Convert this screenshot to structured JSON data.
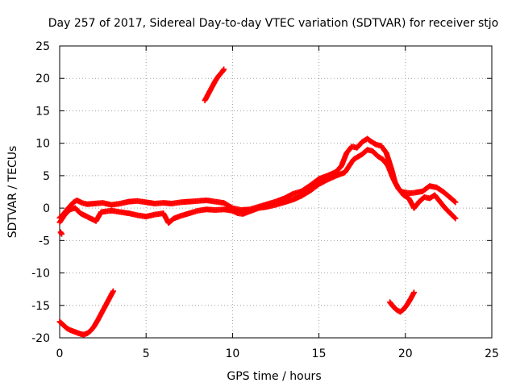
{
  "chart_data": {
    "type": "scatter",
    "title": "Day 257 of 2017, Sidereal Day-to-day VTEC variation (SDTVAR) for receiver stjo",
    "xlabel": "GPS time / hours",
    "ylabel": "SDTVAR / TECUs",
    "xlim": [
      0,
      25
    ],
    "ylim": [
      -20,
      25
    ],
    "xticks": [
      0,
      5,
      10,
      15,
      20,
      25
    ],
    "yticks": [
      -20,
      -15,
      -10,
      -5,
      0,
      5,
      10,
      15,
      20,
      25
    ],
    "grid": true,
    "marker_color": "#ff0000",
    "series": [
      {
        "name": "main-upper",
        "x": [
          0.0,
          0.2,
          0.4,
          0.6,
          0.8,
          1.0,
          1.3,
          1.6,
          2.0,
          2.5,
          3.0,
          3.5,
          4.0,
          4.5,
          5.0,
          5.5,
          6.0,
          6.5,
          7.0,
          7.5,
          8.0,
          8.5,
          9.0,
          9.5,
          10.0,
          10.5,
          11.0,
          11.5,
          12.0,
          12.5,
          13.0,
          13.5,
          14.0,
          14.5,
          15.0,
          15.5,
          16.0,
          16.3,
          16.6,
          16.9,
          17.2,
          17.5,
          17.8,
          18.0,
          18.3,
          18.6,
          18.9,
          19.2,
          19.4,
          19.6,
          19.8,
          20.0,
          20.3,
          20.6,
          21.0,
          21.4,
          21.8,
          22.2,
          22.6,
          22.9
        ],
        "y": [
          -1.5,
          -1.0,
          -0.3,
          0.3,
          0.9,
          1.2,
          0.8,
          0.6,
          0.7,
          0.8,
          0.5,
          0.7,
          1.0,
          1.1,
          0.9,
          0.7,
          0.8,
          0.7,
          0.9,
          1.0,
          1.1,
          1.2,
          1.0,
          0.8,
          0.0,
          -0.3,
          -0.2,
          0.2,
          0.6,
          1.0,
          1.5,
          2.2,
          2.6,
          3.5,
          4.5,
          5.0,
          5.6,
          6.5,
          8.5,
          9.5,
          9.3,
          10.2,
          10.7,
          10.3,
          9.8,
          9.6,
          8.5,
          6.0,
          4.0,
          3.0,
          2.5,
          2.4,
          2.3,
          2.4,
          2.6,
          3.4,
          3.2,
          2.5,
          1.6,
          0.9
        ]
      },
      {
        "name": "main-lower",
        "x": [
          0.0,
          0.3,
          0.6,
          0.9,
          1.2,
          1.5,
          1.8,
          2.1,
          2.4,
          2.7,
          3.0,
          3.5,
          4.0,
          4.5,
          5.0,
          5.5,
          6.0,
          6.3,
          6.6,
          7.0,
          7.5,
          8.0,
          8.5,
          9.0,
          9.5,
          10.0,
          10.3,
          10.6,
          11.0,
          11.5,
          12.0,
          12.5,
          13.0,
          13.5,
          14.0,
          14.5,
          15.0,
          15.5,
          16.0,
          16.5,
          17.0,
          17.5,
          17.8,
          18.1,
          18.4,
          18.7,
          19.0,
          19.3,
          19.6,
          19.9,
          20.2,
          20.5,
          20.8,
          21.1,
          21.4,
          21.7,
          22.0,
          22.3,
          22.6,
          22.9
        ],
        "y": [
          -2.2,
          -1.0,
          -0.2,
          0.0,
          -0.8,
          -1.2,
          -1.6,
          -2.0,
          -0.6,
          -0.5,
          -0.4,
          -0.6,
          -0.8,
          -1.1,
          -1.3,
          -1.0,
          -0.8,
          -2.3,
          -1.6,
          -1.2,
          -0.8,
          -0.4,
          -0.2,
          -0.3,
          -0.2,
          -0.4,
          -0.8,
          -0.9,
          -0.5,
          0.0,
          0.2,
          0.5,
          0.9,
          1.3,
          1.9,
          2.7,
          3.7,
          4.4,
          5.0,
          5.5,
          7.5,
          8.3,
          9.0,
          8.8,
          8.0,
          7.5,
          6.5,
          4.5,
          3.0,
          2.0,
          1.5,
          0.0,
          1.0,
          1.7,
          1.5,
          2.0,
          1.0,
          0.0,
          -0.8,
          -1.6
        ]
      },
      {
        "name": "start-dot",
        "x": [
          0.05,
          0.12
        ],
        "y": [
          -3.7,
          -4.0
        ]
      },
      {
        "name": "arc-bottom-left",
        "x": [
          0.0,
          0.2,
          0.4,
          0.6,
          0.8,
          1.0,
          1.2,
          1.4,
          1.6,
          1.8,
          2.0,
          2.2,
          2.4,
          2.6,
          2.8,
          3.0,
          3.1
        ],
        "y": [
          -17.5,
          -18.0,
          -18.5,
          -18.8,
          -19.0,
          -19.2,
          -19.4,
          -19.5,
          -19.3,
          -18.9,
          -18.2,
          -17.3,
          -16.3,
          -15.3,
          -14.3,
          -13.3,
          -12.8
        ]
      },
      {
        "name": "arc-upper",
        "x": [
          8.4,
          8.6,
          8.8,
          9.0,
          9.2,
          9.4,
          9.5
        ],
        "y": [
          16.6,
          17.6,
          18.6,
          19.6,
          20.4,
          21.0,
          21.4
        ]
      },
      {
        "name": "arc-bottom-right",
        "x": [
          19.1,
          19.3,
          19.5,
          19.7,
          19.9,
          20.1,
          20.3,
          20.5
        ],
        "y": [
          -14.5,
          -15.2,
          -15.7,
          -16.0,
          -15.6,
          -14.9,
          -14.0,
          -13.0
        ]
      }
    ]
  }
}
